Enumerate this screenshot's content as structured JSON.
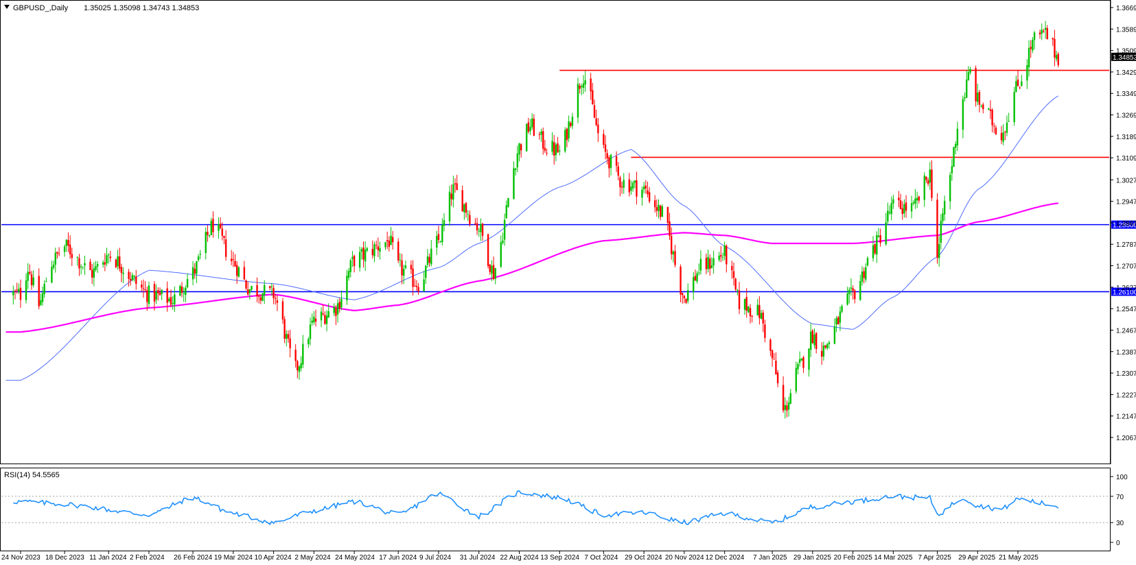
{
  "header": {
    "symbol": "GBPUSD_,Daily",
    "ohlc": "1.35025 1.35098 1.34743 1.34853"
  },
  "rsi_label": "RSI(14) 54.5565",
  "colors": {
    "bull": "#00c000",
    "bear": "#ff0000",
    "resistance_line": "#ff0000",
    "support_line": "#0000ff",
    "ma_fast": "#4d6bff",
    "ma_slow": "#ff00ff",
    "rsi_line": "#1e90ff"
  },
  "chart_data": [
    {
      "type": "candlestick",
      "title": "GBPUSD_,Daily",
      "price_axis_ticks": [
        "1.36690",
        "1.35890",
        "1.35090",
        "1.34290",
        "1.33490",
        "1.32690",
        "1.31890",
        "1.31090",
        "1.30270",
        "1.29470",
        "1.28670",
        "1.27870",
        "1.27070",
        "1.26270",
        "1.25470",
        "1.24670",
        "1.23870",
        "1.23070",
        "1.22270",
        "1.21470",
        "1.20670"
      ],
      "ylim": [
        1.2067,
        1.3669
      ],
      "date_axis_labels": [
        "24 Nov 2023",
        "18 Dec 2023",
        "11 Jan 2024",
        "2 Feb 2024",
        "26 Feb 2024",
        "19 Mar 2024",
        "10 Apr 2024",
        "2 May 2024",
        "24 May 2024",
        "17 Jun 2024",
        "9 Jul 2024",
        "31 Jul 2024",
        "22 Aug 2024",
        "13 Sep 2024",
        "7 Oct 2024",
        "29 Oct 2024",
        "20 Nov 2024",
        "12 Dec 2024",
        "7 Jan 2025",
        "29 Jan 2025",
        "20 Feb 2025",
        "14 Mar 2025",
        "7 Apr 2025",
        "29 Apr 2025",
        "21 May 2025"
      ],
      "last_price_label": "1.34853",
      "horizontal_levels": [
        {
          "value": 1.3435,
          "color": "red",
          "starts_at": "13 Sep 2024"
        },
        {
          "value": 1.3111,
          "color": "red",
          "starts_at": "7 Oct 2024"
        },
        {
          "value": 1.286,
          "color": "blue",
          "label": "1.28600"
        },
        {
          "value": 1.261,
          "color": "blue",
          "label": "1.26100"
        }
      ],
      "price_path_keypoints": [
        {
          "date": "24 Nov 2023",
          "close": 1.26
        },
        {
          "date": "28 Nov 2023",
          "close": 1.27
        },
        {
          "date": "4 Dec 2023",
          "close": 1.256
        },
        {
          "date": "11 Dec 2023",
          "close": 1.272
        },
        {
          "date": "18 Dec 2023",
          "close": 1.278
        },
        {
          "date": "2 Jan 2024",
          "close": 1.268
        },
        {
          "date": "11 Jan 2024",
          "close": 1.275
        },
        {
          "date": "2 Feb 2024",
          "close": 1.26
        },
        {
          "date": "15 Feb 2024",
          "close": 1.258
        },
        {
          "date": "26 Feb 2024",
          "close": 1.268
        },
        {
          "date": "8 Mar 2024",
          "close": 1.286
        },
        {
          "date": "19 Mar 2024",
          "close": 1.272
        },
        {
          "date": "28 Mar 2024",
          "close": 1.262
        },
        {
          "date": "10 Apr 2024",
          "close": 1.26
        },
        {
          "date": "22 Apr 2024",
          "close": 1.232
        },
        {
          "date": "2 May 2024",
          "close": 1.25
        },
        {
          "date": "14 May 2024",
          "close": 1.255
        },
        {
          "date": "24 May 2024",
          "close": 1.273
        },
        {
          "date": "12 Jun 2024",
          "close": 1.28
        },
        {
          "date": "17 Jun 2024",
          "close": 1.27
        },
        {
          "date": "28 Jun 2024",
          "close": 1.264
        },
        {
          "date": "9 Jul 2024",
          "close": 1.28
        },
        {
          "date": "17 Jul 2024",
          "close": 1.299
        },
        {
          "date": "31 Jul 2024",
          "close": 1.285
        },
        {
          "date": "8 Aug 2024",
          "close": 1.268
        },
        {
          "date": "22 Aug 2024",
          "close": 1.315
        },
        {
          "date": "28 Aug 2024",
          "close": 1.323
        },
        {
          "date": "6 Sep 2024",
          "close": 1.315
        },
        {
          "date": "13 Sep 2024",
          "close": 1.313
        },
        {
          "date": "26 Sep 2024",
          "close": 1.342
        },
        {
          "date": "7 Oct 2024",
          "close": 1.313
        },
        {
          "date": "17 Oct 2024",
          "close": 1.302
        },
        {
          "date": "29 Oct 2024",
          "close": 1.299
        },
        {
          "date": "8 Nov 2024",
          "close": 1.29
        },
        {
          "date": "20 Nov 2024",
          "close": 1.259
        },
        {
          "date": "29 Nov 2024",
          "close": 1.27
        },
        {
          "date": "12 Dec 2024",
          "close": 1.275
        },
        {
          "date": "20 Dec 2024",
          "close": 1.257
        },
        {
          "date": "31 Dec 2024",
          "close": 1.253
        },
        {
          "date": "7 Jan 2025",
          "close": 1.236
        },
        {
          "date": "13 Jan 2025",
          "close": 1.216
        },
        {
          "date": "22 Jan 2025",
          "close": 1.233
        },
        {
          "date": "29 Jan 2025",
          "close": 1.245
        },
        {
          "date": "3 Feb 2025",
          "close": 1.239
        },
        {
          "date": "20 Feb 2025",
          "close": 1.26
        },
        {
          "date": "4 Mar 2025",
          "close": 1.278
        },
        {
          "date": "14 Mar 2025",
          "close": 1.293
        },
        {
          "date": "25 Mar 2025",
          "close": 1.292
        },
        {
          "date": "3 Apr 2025",
          "close": 1.305
        },
        {
          "date": "7 Apr 2025",
          "close": 1.274
        },
        {
          "date": "11 Apr 2025",
          "close": 1.294
        },
        {
          "date": "21 Apr 2025",
          "close": 1.333
        },
        {
          "date": "25 Apr 2025",
          "close": 1.343
        },
        {
          "date": "29 Apr 2025",
          "close": 1.332
        },
        {
          "date": "12 May 2025",
          "close": 1.32
        },
        {
          "date": "21 May 2025",
          "close": 1.338
        },
        {
          "date": "30 May 2025",
          "close": 1.355
        },
        {
          "date": "5 Jun 2025",
          "close": 1.357
        },
        {
          "date": "12 Jun 2025",
          "close": 1.3485
        }
      ],
      "moving_averages": [
        {
          "color": "blue",
          "keypoints": [
            {
              "date": "24 Nov 2023",
              "value": 1.228
            },
            {
              "date": "2 Feb 2024",
              "value": 1.269
            },
            {
              "date": "10 Apr 2024",
              "value": 1.264
            },
            {
              "date": "24 May 2024",
              "value": 1.258
            },
            {
              "date": "9 Jul 2024",
              "value": 1.27
            },
            {
              "date": "31 Jul 2024",
              "value": 1.279
            },
            {
              "date": "13 Sep 2024",
              "value": 1.3
            },
            {
              "date": "22 Oct 2024",
              "value": 1.314
            },
            {
              "date": "20 Nov 2024",
              "value": 1.293
            },
            {
              "date": "12 Dec 2024",
              "value": 1.278
            },
            {
              "date": "29 Jan 2025",
              "value": 1.249
            },
            {
              "date": "20 Feb 2025",
              "value": 1.247
            },
            {
              "date": "14 Mar 2025",
              "value": 1.259
            },
            {
              "date": "7 Apr 2025",
              "value": 1.274
            },
            {
              "date": "29 Apr 2025",
              "value": 1.299
            },
            {
              "date": "12 Jun 2025",
              "value": 1.334
            }
          ]
        },
        {
          "color": "magenta",
          "keypoints": [
            {
              "date": "24 Nov 2023",
              "value": 1.246
            },
            {
              "date": "2 Feb 2024",
              "value": 1.255
            },
            {
              "date": "10 Apr 2024",
              "value": 1.26
            },
            {
              "date": "24 May 2024",
              "value": 1.254
            },
            {
              "date": "17 Jun 2024",
              "value": 1.256
            },
            {
              "date": "31 Jul 2024",
              "value": 1.265
            },
            {
              "date": "7 Oct 2024",
              "value": 1.28
            },
            {
              "date": "20 Nov 2024",
              "value": 1.283
            },
            {
              "date": "12 Dec 2024",
              "value": 1.282
            },
            {
              "date": "7 Jan 2025",
              "value": 1.279
            },
            {
              "date": "20 Feb 2025",
              "value": 1.279
            },
            {
              "date": "7 Apr 2025",
              "value": 1.282
            },
            {
              "date": "29 Apr 2025",
              "value": 1.287
            },
            {
              "date": "12 Jun 2025",
              "value": 1.294
            }
          ]
        }
      ],
      "grid": false
    },
    {
      "type": "line",
      "title": "RSI(14) 54.5565",
      "ylim": [
        0,
        100
      ],
      "y_ticks": [
        "100",
        "70",
        "30",
        "0"
      ],
      "reference_levels": [
        70,
        30
      ],
      "rsi_keypoints": [
        {
          "date": "24 Nov 2023",
          "value": 62
        },
        {
          "date": "18 Dec 2023",
          "value": 58
        },
        {
          "date": "2 Feb 2024",
          "value": 42
        },
        {
          "date": "26 Feb 2024",
          "value": 68
        },
        {
          "date": "19 Mar 2024",
          "value": 44
        },
        {
          "date": "10 Apr 2024",
          "value": 30
        },
        {
          "date": "2 May 2024",
          "value": 48
        },
        {
          "date": "24 May 2024",
          "value": 62
        },
        {
          "date": "17 Jun 2024",
          "value": 42
        },
        {
          "date": "9 Jul 2024",
          "value": 74
        },
        {
          "date": "31 Jul 2024",
          "value": 40
        },
        {
          "date": "22 Aug 2024",
          "value": 76
        },
        {
          "date": "13 Sep 2024",
          "value": 68
        },
        {
          "date": "7 Oct 2024",
          "value": 42
        },
        {
          "date": "29 Oct 2024",
          "value": 45
        },
        {
          "date": "20 Nov 2024",
          "value": 30
        },
        {
          "date": "12 Dec 2024",
          "value": 44
        },
        {
          "date": "7 Jan 2025",
          "value": 30
        },
        {
          "date": "29 Jan 2025",
          "value": 54
        },
        {
          "date": "20 Feb 2025",
          "value": 62
        },
        {
          "date": "14 Mar 2025",
          "value": 70
        },
        {
          "date": "3 Apr 2025",
          "value": 67
        },
        {
          "date": "7 Apr 2025",
          "value": 42
        },
        {
          "date": "21 Apr 2025",
          "value": 68
        },
        {
          "date": "29 Apr 2025",
          "value": 56
        },
        {
          "date": "12 May 2025",
          "value": 50
        },
        {
          "date": "21 May 2025",
          "value": 66
        },
        {
          "date": "12 Jun 2025",
          "value": 55
        }
      ],
      "grid": false
    }
  ]
}
